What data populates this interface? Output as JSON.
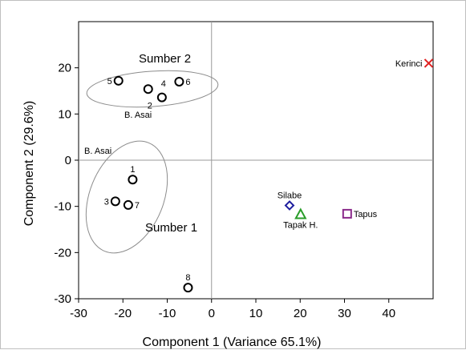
{
  "chart_data": {
    "type": "scatter",
    "xlabel": "Component 1 (Variance 65.1%)",
    "ylabel": "Component 2 (29.6%)",
    "xlim": [
      -30,
      50
    ],
    "ylim": [
      -30,
      30
    ],
    "xticks": [
      -30,
      -20,
      -10,
      0,
      10,
      20,
      30,
      40
    ],
    "yticks": [
      -30,
      -20,
      -10,
      0,
      10,
      20
    ],
    "grid": false,
    "zero_lines": true,
    "points": [
      {
        "label": "1",
        "x": -17.8,
        "y": -4.2,
        "marker": "circle",
        "color": "#000000",
        "label_pos": "above"
      },
      {
        "label": "2",
        "x": -11.2,
        "y": 13.6,
        "marker": "circle",
        "color": "#000000",
        "label_pos": "left-below"
      },
      {
        "label": "3",
        "x": -21.7,
        "y": -8.9,
        "marker": "circle",
        "color": "#000000",
        "label_pos": "left"
      },
      {
        "label": "4",
        "x": -14.3,
        "y": 15.4,
        "marker": "circle",
        "color": "#000000",
        "label_pos": "right-above"
      },
      {
        "label": "5",
        "x": -21.0,
        "y": 17.2,
        "marker": "circle",
        "color": "#000000",
        "label_pos": "left"
      },
      {
        "label": "6",
        "x": -7.3,
        "y": 17.0,
        "marker": "circle",
        "color": "#000000",
        "label_pos": "right"
      },
      {
        "label": "7",
        "x": -18.8,
        "y": -9.7,
        "marker": "circle",
        "color": "#000000",
        "label_pos": "right"
      },
      {
        "label": "8",
        "x": -5.3,
        "y": -27.6,
        "marker": "circle",
        "color": "#000000",
        "label_pos": "above"
      },
      {
        "label": "Silabe",
        "x": 17.6,
        "y": -9.8,
        "marker": "diamond",
        "color": "#1f1f9f",
        "label_pos": "above"
      },
      {
        "label": "Tapak H.",
        "x": 20.1,
        "y": -11.7,
        "marker": "triangle",
        "color": "#2a9d2a",
        "label_pos": "below"
      },
      {
        "label": "Tapus",
        "x": 30.6,
        "y": -11.6,
        "marker": "square",
        "color": "#8a2a8a",
        "label_pos": "right"
      },
      {
        "label": "Kerinci",
        "x": 49.0,
        "y": 21.0,
        "marker": "x",
        "color": "#e02020",
        "label_pos": "left"
      }
    ],
    "groups": [
      {
        "name": "Sumber 2",
        "sublabel": "B. Asai"
      },
      {
        "name": "Sumber 1",
        "sublabel": "B. Asai"
      }
    ]
  }
}
